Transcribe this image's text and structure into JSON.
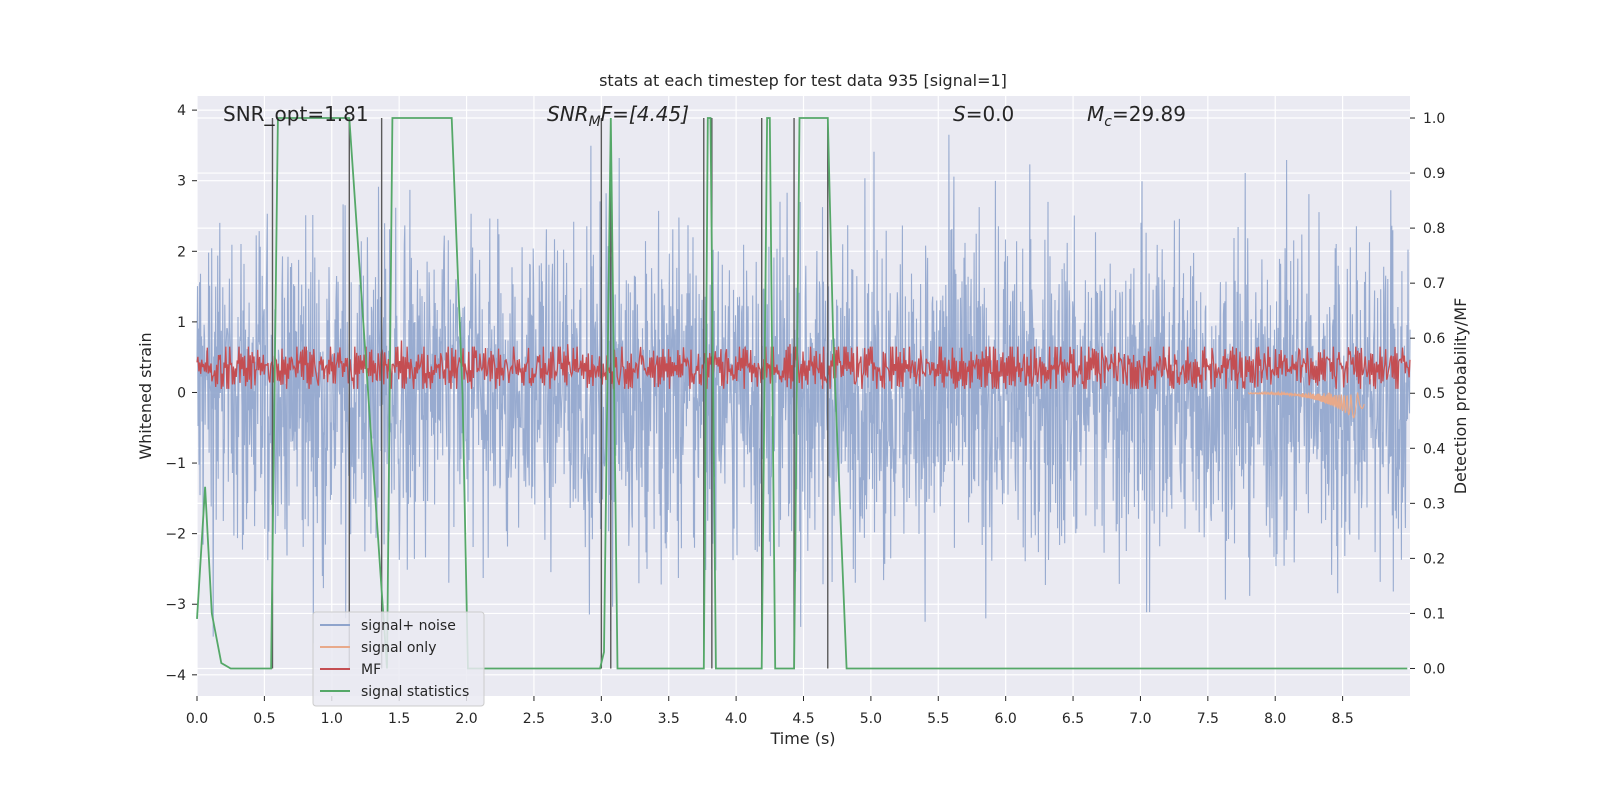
{
  "chart_data": {
    "type": "line",
    "title": "stats at each timestep for test data 935 [signal=1]",
    "xlabel": "Time (s)",
    "ylabel": "Whitened strain",
    "ylabel_right": "Detection probability/MF",
    "xlim": [
      0.0,
      9.0
    ],
    "ylim": [
      -4.3,
      4.2
    ],
    "ylim_right": [
      -0.05,
      1.04
    ],
    "x_ticks": [
      0.0,
      0.5,
      1.0,
      1.5,
      2.0,
      2.5,
      3.0,
      3.5,
      4.0,
      4.5,
      5.0,
      5.5,
      6.0,
      6.5,
      7.0,
      7.5,
      8.0,
      8.5
    ],
    "x_tick_labels": [
      "0.0",
      "0.5",
      "1.0",
      "1.5",
      "2.0",
      "2.5",
      "3.0",
      "3.5",
      "4.0",
      "4.5",
      "5.0",
      "5.5",
      "6.0",
      "6.5",
      "7.0",
      "7.5",
      "8.0",
      "8.5"
    ],
    "y_ticks": [
      4,
      3,
      2,
      1,
      0,
      -1,
      -2,
      -3,
      -4
    ],
    "y_tick_labels": [
      "4",
      "3",
      "2",
      "1",
      "0",
      "−1",
      "−2",
      "−3",
      "−4"
    ],
    "y_right_ticks": [
      1.0,
      0.9,
      0.8,
      0.7,
      0.6,
      0.5,
      0.4,
      0.3,
      0.2,
      0.1,
      0.0
    ],
    "y_right_tick_labels": [
      "1.0",
      "0.9",
      "0.8",
      "0.7",
      "0.6",
      "0.5",
      "0.4",
      "0.3",
      "0.2",
      "0.1",
      "0.0"
    ],
    "grid": true,
    "legend_position": "lower-left",
    "annotations": {
      "snr_opt": "SNR_opt=1.81",
      "snr_mf_name": "SNR",
      "snr_mf_sub": "M",
      "snr_mf_rest": "F=[4.45]",
      "s_name": "S",
      "s_rest": "=0.0",
      "mc_name": "M",
      "mc_sub": "c",
      "mc_rest": "=29.89"
    },
    "series": [
      {
        "name": "signal+ noise",
        "color": "#8fa4cc",
        "axis": "left",
        "description": "whitened noise spanning about -3.5 to 3.5"
      },
      {
        "name": "signal only",
        "color": "#e8a98a",
        "axis": "left",
        "chirp_x": [
          7.8,
          8.66
        ],
        "chirp_peak": 0.45
      },
      {
        "name": "MF",
        "color": "#c44e52",
        "axis": "left",
        "band": [
          0.05,
          0.65
        ]
      },
      {
        "name": "signal statistics",
        "color": "#55a868",
        "axis": "right",
        "x": [
          0.0,
          0.06,
          0.11,
          0.18,
          0.25,
          0.55,
          0.6,
          0.63,
          1.1,
          1.13,
          1.41,
          1.45,
          1.87,
          1.89,
          1.97,
          2.01,
          2.99,
          3.02,
          3.07,
          3.12,
          3.76,
          3.79,
          3.81,
          3.85,
          4.19,
          4.23,
          4.25,
          4.29,
          4.43,
          4.47,
          4.68,
          4.72,
          4.82,
          8.98
        ],
        "y": [
          0.09,
          0.33,
          0.1,
          0.01,
          0.0,
          0.0,
          1.0,
          1.0,
          1.0,
          1.0,
          0.0,
          1.0,
          1.0,
          1.0,
          0.5,
          0.0,
          0.0,
          0.03,
          1.0,
          0.0,
          0.0,
          1.0,
          1.0,
          0.0,
          0.0,
          1.0,
          1.0,
          0.0,
          0.0,
          1.0,
          1.0,
          0.6,
          0.0,
          0.0
        ]
      }
    ],
    "vlines": {
      "color": "#5a5a5a",
      "x": [
        0.56,
        1.13,
        1.37,
        3.0,
        3.07,
        3.76,
        3.82,
        4.19,
        4.43,
        4.68
      ]
    }
  }
}
